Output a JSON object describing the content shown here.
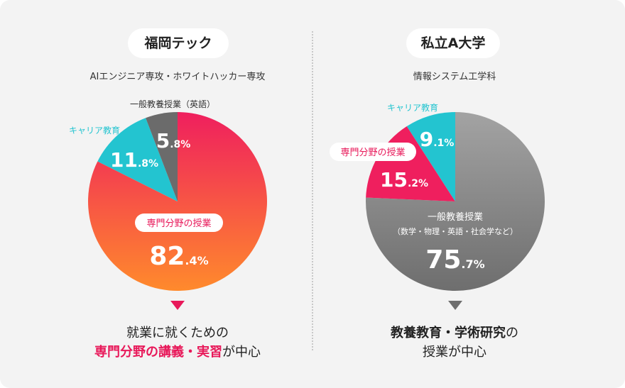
{
  "left": {
    "school": "福岡テック",
    "department": "AIエンジニア専攻・ホワイトハッカー専攻",
    "caption_line1": "就業に就くための",
    "caption_line2_highlight": "専門分野の講義・実習",
    "caption_line2_rest": "が中心"
  },
  "right": {
    "school": "私立A大学",
    "department": "情報システム工学科",
    "caption_line1_bold": "教養教育・学術研究",
    "caption_line1_rest": "の",
    "caption_line2": "授業が中心"
  },
  "colors": {
    "specialty_top": "#ef1f5e",
    "specialty_bottom": "#ff8a2c",
    "career": "#23c4d0",
    "general_left": "#6b6b6b",
    "general_right_top": "#a3a3a3",
    "general_right_bottom": "#6e6e6e",
    "pink_text": "#e8195a",
    "arrow_left": "#e8195a",
    "arrow_right": "#6e6e6e"
  },
  "chart_data": [
    {
      "type": "pie",
      "slices": [
        {
          "label": "専門分野の授業",
          "value": 82.4,
          "int": "82",
          "dec": ".4%"
        },
        {
          "label": "キャリア教育",
          "value": 11.8,
          "int": "11",
          "dec": ".8%"
        },
        {
          "label": "一般教養授業（英語）",
          "value": 5.8,
          "int": "5",
          "dec": ".8%"
        }
      ]
    },
    {
      "type": "pie",
      "slices": [
        {
          "label": "一般教養授業",
          "sublabel": "（数学・物理・英語・社会学など）",
          "value": 75.7,
          "int": "75",
          "dec": ".7%"
        },
        {
          "label": "専門分野の授業",
          "value": 15.2,
          "int": "15",
          "dec": ".2%"
        },
        {
          "label": "キャリア教育",
          "value": 9.1,
          "int": "9",
          "dec": ".1%"
        }
      ]
    }
  ]
}
